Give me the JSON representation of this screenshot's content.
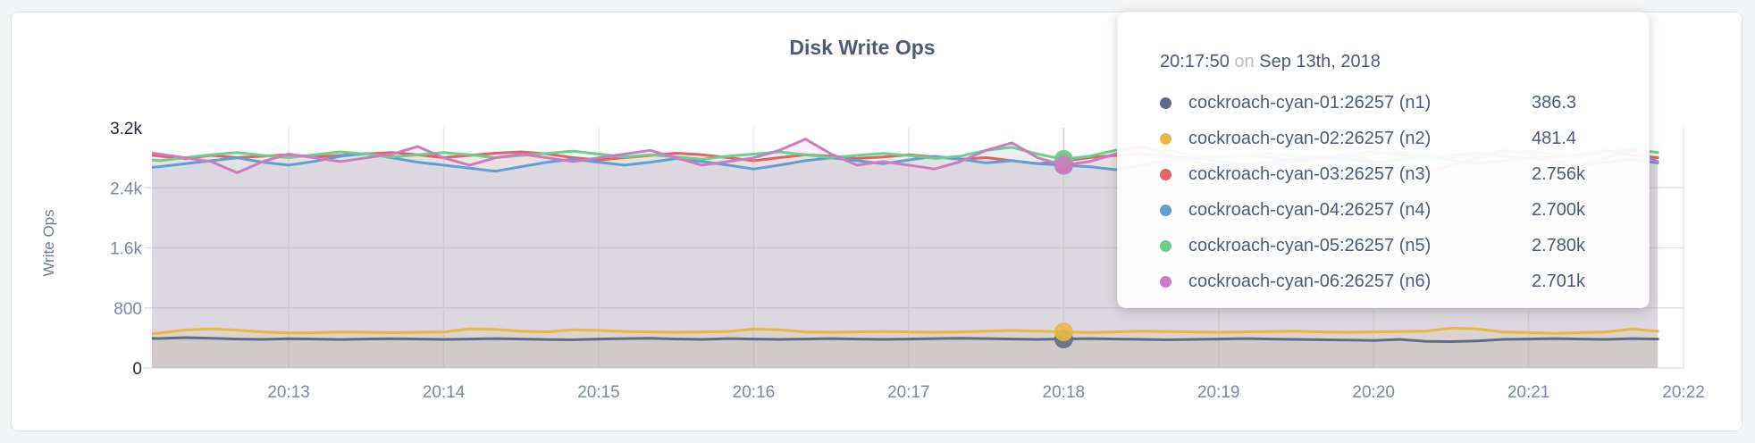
{
  "page": {
    "background": "#f3f4f5"
  },
  "card": {
    "background": "#ffffff",
    "border_color": "#e4e5e7"
  },
  "chart_data": {
    "type": "line",
    "title": "Disk Write Ops",
    "ylabel": "Write Ops",
    "xlabel": "",
    "ylim": [
      0,
      3200
    ],
    "grid": true,
    "legend_position": "tooltip",
    "x_start_time": "20:12:00",
    "x_step_seconds": 10,
    "x_ticks": [
      "20:13",
      "20:14",
      "20:15",
      "20:16",
      "20:17",
      "20:18",
      "20:19",
      "20:20",
      "20:21",
      "20:22"
    ],
    "y_ticks": [
      {
        "label": "3.2k",
        "value": 3200,
        "strong": true
      },
      {
        "label": "2.4k",
        "value": 2400,
        "strong": false
      },
      {
        "label": "1.6k",
        "value": 1600,
        "strong": false
      },
      {
        "label": "800",
        "value": 800,
        "strong": false
      },
      {
        "label": "0",
        "value": 0,
        "strong": true
      }
    ],
    "hover_index": 36,
    "hover_dot_draw_order": [
      3,
      2,
      4,
      5,
      0,
      1
    ],
    "series": [
      {
        "id": "n1",
        "name": "cockroach-cyan-01:26257 (n1)",
        "color": "#5f6c87",
        "values": [
          400,
          392,
          404,
          396,
          386,
          381,
          390,
          386,
          380,
          386,
          390,
          385,
          381,
          386,
          391,
          386,
          380,
          376,
          386,
          391,
          396,
          386,
          381,
          391,
          386,
          381,
          386,
          391,
          386,
          381,
          386,
          391,
          396,
          391,
          386,
          381,
          386.3,
          391,
          386,
          381,
          376,
          381,
          386,
          391,
          386,
          381,
          376,
          371,
          366,
          381,
          356,
          351,
          361,
          381,
          386,
          391,
          386,
          381,
          391,
          386
        ]
      },
      {
        "id": "n2",
        "name": "cockroach-cyan-02:26257 (n2)",
        "color": "#e7ba42",
        "values": [
          430,
          468,
          505,
          522,
          504,
          480,
          466,
          470,
          481,
          476,
          470,
          476,
          481,
          521,
          514,
          491,
          481,
          509,
          501,
          486,
          481,
          476,
          481,
          486,
          519,
          509,
          481,
          476,
          481,
          486,
          481,
          476,
          481,
          491,
          501,
          491,
          481.4,
          471,
          481,
          491,
          486,
          481,
          476,
          481,
          486,
          491,
          481,
          476,
          481,
          486,
          491,
          531,
          521,
          481,
          471,
          461,
          471,
          481,
          519,
          489
        ]
      },
      {
        "id": "n3",
        "name": "cockroach-cyan-03:26257 (n3)",
        "color": "#df6464",
        "values": [
          2868,
          2822,
          2790,
          2832,
          2801,
          2820,
          2842,
          2810,
          2831,
          2851,
          2871,
          2841,
          2801,
          2831,
          2861,
          2879,
          2851,
          2801,
          2771,
          2801,
          2831,
          2861,
          2841,
          2801,
          2761,
          2801,
          2841,
          2821,
          2791,
          2811,
          2841,
          2811,
          2781,
          2801,
          2761,
          2721,
          2756,
          2801,
          2831,
          2851,
          2821,
          2791,
          2811,
          2841,
          2801,
          2761,
          2801,
          2841,
          2879,
          2841,
          2801,
          2831,
          2861,
          2821,
          2791,
          2811,
          2841,
          2899,
          2831,
          2801
        ]
      },
      {
        "id": "n4",
        "name": "cockroach-cyan-04:26257 (n4)",
        "color": "#5f9fd6",
        "values": [
          2652,
          2681,
          2722,
          2761,
          2799,
          2741,
          2701,
          2751,
          2819,
          2859,
          2799,
          2741,
          2701,
          2661,
          2621,
          2681,
          2741,
          2781,
          2741,
          2701,
          2741,
          2789,
          2751,
          2701,
          2651,
          2701,
          2761,
          2799,
          2761,
          2721,
          2771,
          2819,
          2781,
          2731,
          2761,
          2721,
          2700,
          2681,
          2641,
          2701,
          2761,
          2799,
          2751,
          2701,
          2741,
          2789,
          2829,
          2781,
          2731,
          2771,
          2819,
          2771,
          2721,
          2761,
          2799,
          2751,
          2701,
          2741,
          2781,
          2731
        ]
      },
      {
        "id": "n5",
        "name": "cockroach-cyan-05:26257 (n5)",
        "color": "#6fcd8d",
        "values": [
          2789,
          2761,
          2801,
          2839,
          2869,
          2831,
          2801,
          2841,
          2879,
          2849,
          2811,
          2841,
          2869,
          2841,
          2801,
          2831,
          2859,
          2889,
          2849,
          2811,
          2841,
          2811,
          2781,
          2821,
          2849,
          2879,
          2841,
          2801,
          2831,
          2859,
          2831,
          2791,
          2821,
          2899,
          2939,
          2849,
          2780,
          2821,
          2899,
          2949,
          2899,
          2841,
          2801,
          2831,
          2859,
          2821,
          2791,
          2821,
          2849,
          2879,
          2841,
          2801,
          2831,
          2859,
          2889,
          2849,
          2811,
          2879,
          2919,
          2869
        ]
      },
      {
        "id": "n6",
        "name": "cockroach-cyan-06:26257 (n6)",
        "color": "#cd7bc2",
        "values": [
          2899,
          2849,
          2799,
          2749,
          2601,
          2749,
          2849,
          2799,
          2749,
          2799,
          2849,
          2949,
          2799,
          2701,
          2799,
          2849,
          2799,
          2749,
          2799,
          2849,
          2899,
          2799,
          2701,
          2749,
          2799,
          2899,
          3049,
          2849,
          2701,
          2749,
          2701,
          2651,
          2749,
          2899,
          2999,
          2799,
          2701,
          2749,
          2849,
          2949,
          2849,
          2749,
          2701,
          2651,
          2701,
          2749,
          2799,
          2849,
          2749,
          2651,
          2601,
          2701,
          2799,
          2899,
          2849,
          2749,
          2701,
          2799,
          2899,
          2749
        ]
      }
    ]
  },
  "tooltip": {
    "time": "20:17:50",
    "conj": "on",
    "date": "Sep 13th, 2018",
    "rows": [
      {
        "id": "n1",
        "name": "cockroach-cyan-01:26257 (n1)",
        "value": "386.3",
        "color": "#5f6c87"
      },
      {
        "id": "n2",
        "name": "cockroach-cyan-02:26257 (n2)",
        "value": "481.4",
        "color": "#e7ba42"
      },
      {
        "id": "n3",
        "name": "cockroach-cyan-03:26257 (n3)",
        "value": "2.756k",
        "color": "#df6464"
      },
      {
        "id": "n4",
        "name": "cockroach-cyan-04:26257 (n4)",
        "value": "2.700k",
        "color": "#5f9fd6"
      },
      {
        "id": "n5",
        "name": "cockroach-cyan-05:26257 (n5)",
        "value": "2.780k",
        "color": "#6fcd8d"
      },
      {
        "id": "n6",
        "name": "cockroach-cyan-06:26257 (n6)",
        "value": "2.701k",
        "color": "#cd7bc2"
      }
    ]
  }
}
